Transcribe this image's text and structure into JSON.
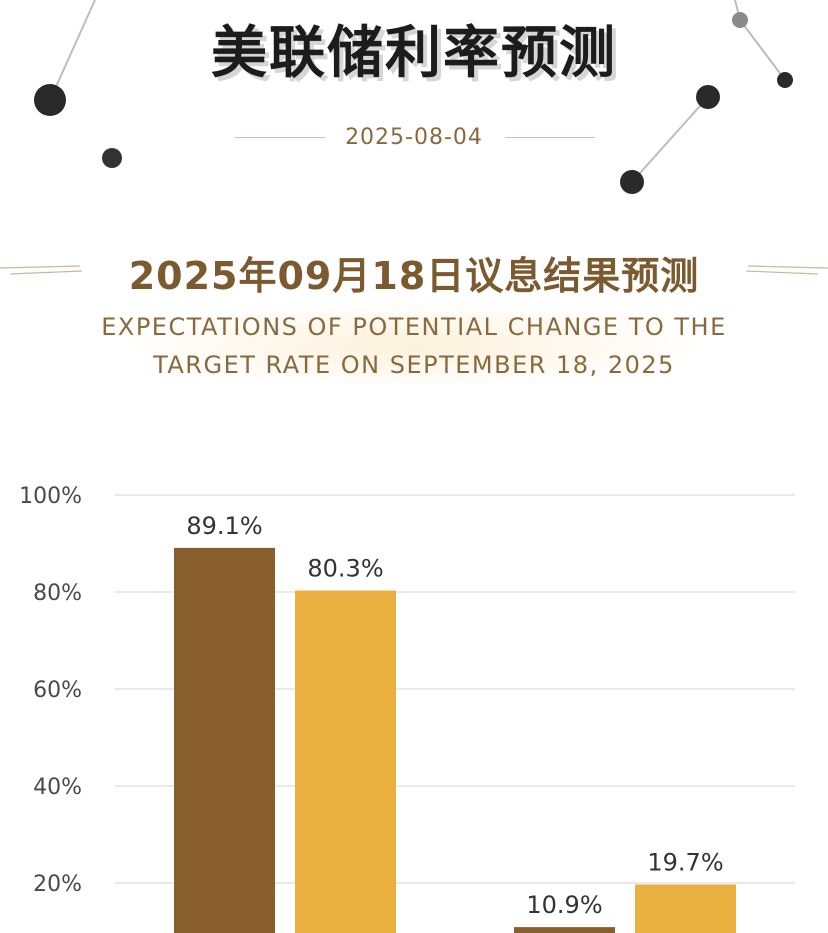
{
  "header": {
    "title": "美联储利率预测",
    "date": "2025-08-04"
  },
  "section": {
    "title": "2025年09月18日议息结果预测",
    "subtitle": "EXPECTATIONS OF POTENTIAL CHANGE TO THE TARGET RATE ON SEPTEMBER 18, 2025"
  },
  "colors": {
    "series_dark": "#875e2c",
    "series_light": "#e9b040",
    "title_brown": "#7a5a2e",
    "grid": "#e3e3e3"
  },
  "chart_data": {
    "type": "bar",
    "title": "",
    "xlabel": "",
    "ylabel": "",
    "ylim": [
      0,
      100
    ],
    "yticks": [
      "20%",
      "40%",
      "60%",
      "80%",
      "100%"
    ],
    "grid": true,
    "groups": 2,
    "series": [
      {
        "values": [
          89.1,
          10.9
        ],
        "labels": [
          "89.1%",
          "10.9%"
        ],
        "color": "#875e2c"
      },
      {
        "values": [
          80.3,
          19.7
        ],
        "labels": [
          "80.3%",
          "19.7%"
        ],
        "color": "#e9b040"
      }
    ]
  }
}
